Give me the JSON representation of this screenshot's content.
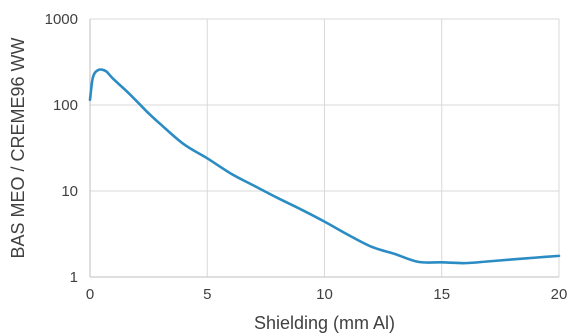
{
  "chart_data": {
    "type": "line",
    "title": "",
    "xlabel": "Shielding (mm Al)",
    "ylabel": "BAS MEO / CREME96 WW",
    "xlim": [
      0,
      20
    ],
    "ylim": [
      1,
      1000
    ],
    "yscale": "log",
    "x_ticks": [
      0,
      5,
      10,
      15,
      20
    ],
    "x_tick_labels": [
      "0",
      "5",
      "10",
      "15",
      "20"
    ],
    "y_ticks": [
      1,
      10,
      100,
      1000
    ],
    "y_tick_labels": [
      "1",
      "10",
      "100",
      "1000"
    ],
    "grid": true,
    "series": [
      {
        "color": "#2b8cc4",
        "x": [
          0,
          0.1,
          0.2,
          0.35,
          0.5,
          0.7,
          1,
          1.5,
          2,
          2.5,
          3,
          4,
          5,
          6,
          7,
          8,
          9,
          10,
          11,
          12,
          13,
          14,
          15,
          16,
          17,
          18,
          19,
          20
        ],
        "y": [
          115,
          195,
          235,
          255,
          258,
          245,
          200,
          150,
          110,
          80,
          60,
          35,
          24,
          16,
          11.5,
          8.3,
          6.1,
          4.4,
          3.1,
          2.25,
          1.85,
          1.5,
          1.48,
          1.45,
          1.52,
          1.6,
          1.68,
          1.76
        ]
      }
    ]
  }
}
